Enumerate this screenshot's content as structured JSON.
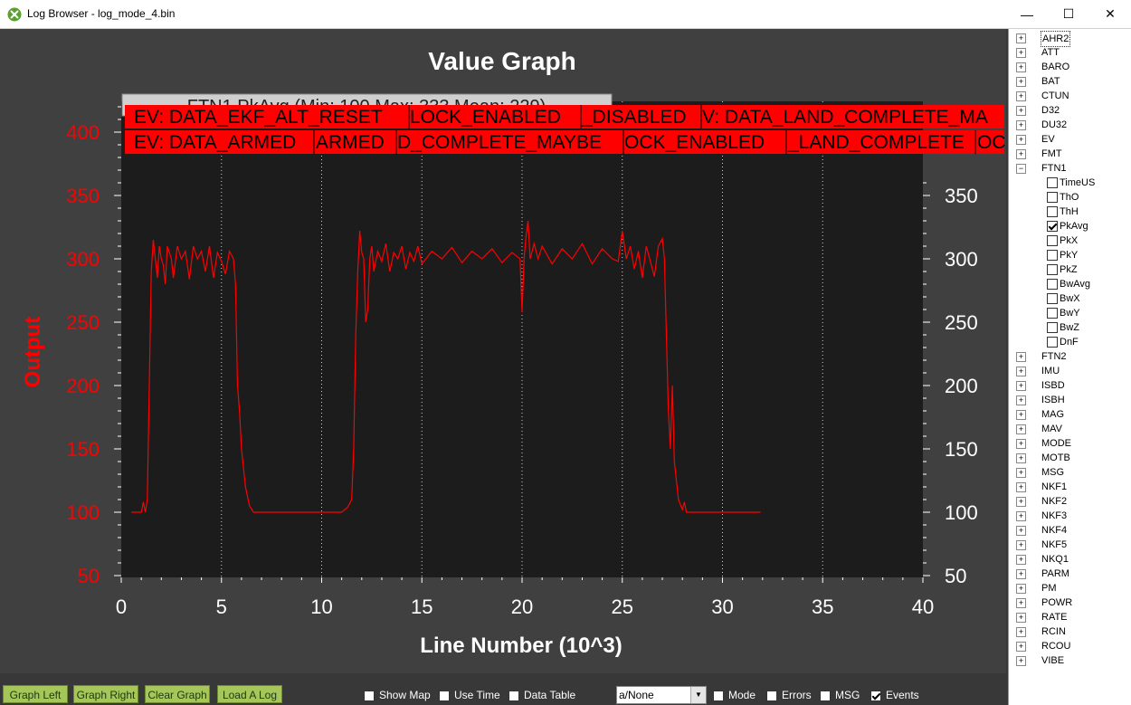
{
  "window": {
    "title": "Log Browser - log_mode_4.bin",
    "minimize": "—",
    "maximize": "☐",
    "close": "✕"
  },
  "chart_data": {
    "type": "line",
    "title": "Value Graph",
    "xlabel": "Line Number (10^3)",
    "ylabel": "Output",
    "xlim": [
      0,
      40
    ],
    "ylim": [
      50,
      420
    ],
    "x_ticks": [
      "0",
      "5",
      "10",
      "15",
      "20",
      "25",
      "30",
      "35",
      "40"
    ],
    "y_ticks": [
      "50",
      "100",
      "150",
      "200",
      "250",
      "300",
      "350",
      "400"
    ],
    "y2_ticks": [
      "50",
      "100",
      "150",
      "200",
      "250",
      "300",
      "350"
    ],
    "grid": "x-dotted",
    "legend": "FTN1.PkAvg (Min: 100 Max: 333 Mean: 229)",
    "series": [
      {
        "name": "FTN1.PkAvg",
        "color": "#ff0000",
        "points": [
          [
            0.5,
            100
          ],
          [
            1.0,
            100
          ],
          [
            1.1,
            108
          ],
          [
            1.2,
            100
          ],
          [
            1.3,
            110
          ],
          [
            1.4,
            200
          ],
          [
            1.5,
            290
          ],
          [
            1.6,
            315
          ],
          [
            1.7,
            300
          ],
          [
            1.8,
            285
          ],
          [
            1.9,
            310
          ],
          [
            2.0,
            300
          ],
          [
            2.1,
            295
          ],
          [
            2.2,
            280
          ],
          [
            2.3,
            310
          ],
          [
            2.4,
            305
          ],
          [
            2.5,
            300
          ],
          [
            2.6,
            285
          ],
          [
            2.8,
            310
          ],
          [
            3.0,
            300
          ],
          [
            3.2,
            306
          ],
          [
            3.4,
            284
          ],
          [
            3.6,
            310
          ],
          [
            3.8,
            300
          ],
          [
            4.0,
            306
          ],
          [
            4.2,
            290
          ],
          [
            4.4,
            310
          ],
          [
            4.6,
            285
          ],
          [
            4.8,
            305
          ],
          [
            5.0,
            298
          ],
          [
            5.2,
            288
          ],
          [
            5.4,
            306
          ],
          [
            5.6,
            300
          ],
          [
            5.7,
            280
          ],
          [
            5.8,
            200
          ],
          [
            5.9,
            180
          ],
          [
            6.0,
            150
          ],
          [
            6.2,
            120
          ],
          [
            6.4,
            105
          ],
          [
            6.6,
            100
          ],
          [
            8.0,
            100
          ],
          [
            10.0,
            100
          ],
          [
            11.0,
            100
          ],
          [
            11.3,
            104
          ],
          [
            11.5,
            110
          ],
          [
            11.6,
            150
          ],
          [
            11.7,
            240
          ],
          [
            11.8,
            290
          ],
          [
            11.9,
            322
          ],
          [
            12.0,
            305
          ],
          [
            12.1,
            300
          ],
          [
            12.2,
            250
          ],
          [
            12.3,
            260
          ],
          [
            12.4,
            300
          ],
          [
            12.5,
            310
          ],
          [
            12.6,
            290
          ],
          [
            12.8,
            306
          ],
          [
            13.0,
            298
          ],
          [
            13.2,
            312
          ],
          [
            13.4,
            290
          ],
          [
            13.6,
            305
          ],
          [
            13.8,
            300
          ],
          [
            14.0,
            310
          ],
          [
            14.2,
            292
          ],
          [
            14.4,
            305
          ],
          [
            14.6,
            298
          ],
          [
            14.8,
            310
          ],
          [
            15.0,
            296
          ],
          [
            15.5,
            306
          ],
          [
            16.0,
            300
          ],
          [
            16.5,
            309
          ],
          [
            17.0,
            297
          ],
          [
            17.5,
            306
          ],
          [
            18.0,
            300
          ],
          [
            18.5,
            308
          ],
          [
            19.0,
            297
          ],
          [
            19.5,
            305
          ],
          [
            19.9,
            300
          ],
          [
            20.0,
            258
          ],
          [
            20.1,
            300
          ],
          [
            20.2,
            318
          ],
          [
            20.3,
            330
          ],
          [
            20.4,
            300
          ],
          [
            20.6,
            312
          ],
          [
            20.8,
            300
          ],
          [
            21.0,
            310
          ],
          [
            21.5,
            296
          ],
          [
            22.0,
            308
          ],
          [
            22.5,
            300
          ],
          [
            23.0,
            312
          ],
          [
            23.5,
            296
          ],
          [
            24.0,
            308
          ],
          [
            24.5,
            300
          ],
          [
            24.8,
            298
          ],
          [
            25.0,
            322
          ],
          [
            25.2,
            300
          ],
          [
            25.4,
            310
          ],
          [
            25.6,
            292
          ],
          [
            25.8,
            306
          ],
          [
            26.0,
            285
          ],
          [
            26.2,
            310
          ],
          [
            26.4,
            298
          ],
          [
            26.6,
            286
          ],
          [
            26.8,
            310
          ],
          [
            27.0,
            316
          ],
          [
            27.1,
            300
          ],
          [
            27.2,
            240
          ],
          [
            27.3,
            180
          ],
          [
            27.4,
            150
          ],
          [
            27.5,
            200
          ],
          [
            27.6,
            140
          ],
          [
            27.8,
            110
          ],
          [
            28.0,
            102
          ],
          [
            28.1,
            108
          ],
          [
            28.2,
            100
          ],
          [
            30.0,
            100
          ],
          [
            31.9,
            100
          ]
        ]
      }
    ]
  },
  "events": {
    "row1": [
      "EV: DATA_EKF_ALT_RESET",
      "LOCK_ENABLED",
      "_DISABLED",
      "V: DATA_LAND_COMPLETE_MA"
    ],
    "row2": [
      "EV: DATA_ARMED",
      "ARMED",
      "D_COMPLETE_MAYBE",
      "OCK_ENABLED",
      "_LAND_COMPLETE",
      "OCK"
    ]
  },
  "tree": {
    "items": [
      "AHR2",
      "ATT",
      "BARO",
      "BAT",
      "CTUN",
      "D32",
      "DU32",
      "EV",
      "FMT",
      "FTN1",
      "FTN2",
      "IMU",
      "ISBD",
      "ISBH",
      "MAG",
      "MAV",
      "MODE",
      "MOTB",
      "MSG",
      "NKF1",
      "NKF2",
      "NKF3",
      "NKF4",
      "NKF5",
      "NKQ1",
      "PARM",
      "PM",
      "POWR",
      "RATE",
      "RCIN",
      "RCOU",
      "VIBE"
    ],
    "expanded": "FTN1",
    "selected": "AHR2",
    "ftn1_children": [
      {
        "label": "TimeUS",
        "checked": false
      },
      {
        "label": "ThO",
        "checked": false
      },
      {
        "label": "ThH",
        "checked": false
      },
      {
        "label": "PkAvg",
        "checked": true
      },
      {
        "label": "PkX",
        "checked": false
      },
      {
        "label": "PkY",
        "checked": false
      },
      {
        "label": "PkZ",
        "checked": false
      },
      {
        "label": "BwAvg",
        "checked": false
      },
      {
        "label": "BwX",
        "checked": false
      },
      {
        "label": "BwY",
        "checked": false
      },
      {
        "label": "BwZ",
        "checked": false
      },
      {
        "label": "DnF",
        "checked": false
      }
    ]
  },
  "bottombar": {
    "graph_left": "Graph Left",
    "graph_right": "Graph Right",
    "clear_graph": "Clear Graph",
    "load_log": "Load A Log",
    "show_map": {
      "label": "Show Map",
      "checked": false
    },
    "use_time": {
      "label": "Use Time",
      "checked": false
    },
    "data_table": {
      "label": "Data Table",
      "checked": false
    },
    "select_value": "a/None",
    "mode": {
      "label": "Mode",
      "checked": false
    },
    "errors": {
      "label": "Errors",
      "checked": false
    },
    "msg": {
      "label": "MSG",
      "checked": false
    },
    "events_cb": {
      "label": "Events",
      "checked": true
    }
  }
}
